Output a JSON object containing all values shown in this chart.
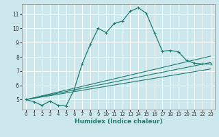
{
  "title": "",
  "xlabel": "Humidex (Indice chaleur)",
  "background_color": "#cde8ec",
  "grid_color": "#b0d4d8",
  "line_color": "#1a7a6e",
  "xlim": [
    -0.5,
    23.5
  ],
  "ylim": [
    4.3,
    11.7
  ],
  "yticks": [
    5,
    6,
    7,
    8,
    9,
    10,
    11
  ],
  "xticks": [
    0,
    1,
    2,
    3,
    4,
    5,
    6,
    7,
    8,
    9,
    10,
    11,
    12,
    13,
    14,
    15,
    16,
    17,
    18,
    19,
    20,
    21,
    22,
    23
  ],
  "main_x": [
    0,
    1,
    2,
    3,
    4,
    5,
    6,
    7,
    8,
    9,
    10,
    11,
    12,
    13,
    14,
    15,
    16,
    17,
    18,
    19,
    20,
    21,
    22,
    23
  ],
  "main_y": [
    5.0,
    4.85,
    4.6,
    4.9,
    4.6,
    4.55,
    5.7,
    7.5,
    8.85,
    10.0,
    9.7,
    10.35,
    10.5,
    11.2,
    11.45,
    11.05,
    9.7,
    8.4,
    8.45,
    8.35,
    7.75,
    7.55,
    7.5,
    7.5
  ],
  "linear_lines": [
    {
      "x": [
        0,
        23
      ],
      "y": [
        5.0,
        7.6
      ]
    },
    {
      "x": [
        0,
        23
      ],
      "y": [
        5.0,
        8.05
      ]
    },
    {
      "x": [
        0,
        23
      ],
      "y": [
        5.0,
        7.15
      ]
    }
  ]
}
